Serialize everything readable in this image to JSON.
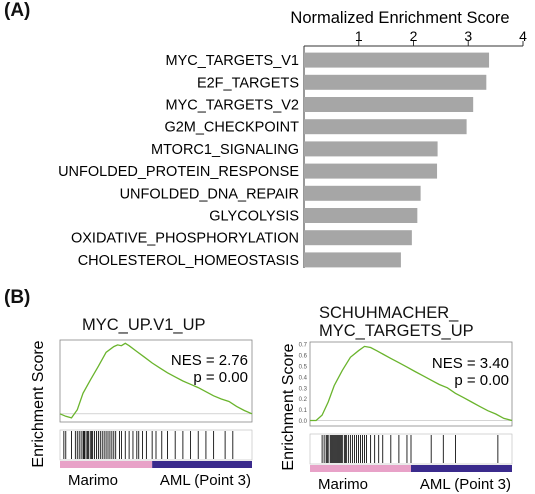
{
  "panel_a": {
    "label": "(A)"
  },
  "panel_b": {
    "label": "(B)",
    "plots": [
      {
        "title": "MYC_UP.V1_UP",
        "nes_text": "NES = 2.76",
        "p_text": "p = 0.00",
        "ylabel": "Enrichment Score",
        "xlabel_left": "Marimo",
        "xlabel_right": "AML (Point 3)"
      },
      {
        "title_line1": "SCHUHMACHER_",
        "title_line2": "MYC_TARGETS_UP",
        "nes_text": "NES = 3.40",
        "p_text": "p = 0.00",
        "ylabel": "Enrichment Score",
        "xlabel_left": "Marimo",
        "xlabel_right": "AML (Point 3)"
      }
    ]
  },
  "chart_data": [
    {
      "type": "bar",
      "orientation": "horizontal",
      "title": "Normalized Enrichment Score",
      "categories": [
        "MYC_TARGETS_V1",
        "E2F_TARGETS",
        "MYC_TARGETS_V2",
        "G2M_CHECKPOINT",
        "MTORC1_SIGNALING",
        "UNFOLDED_PROTEIN_RESPONSE",
        "UNFOLDED_DNA_REPAIR",
        "GLYCOLYSIS",
        "OXIDATIVE_PHOSPHORYLATION",
        "CHOLESTEROL_HOMEOSTASIS"
      ],
      "values": [
        3.38,
        3.33,
        3.09,
        2.97,
        2.44,
        2.43,
        2.13,
        2.07,
        1.97,
        1.77
      ],
      "xlim": [
        0,
        4
      ],
      "xticks": [
        1,
        2,
        3,
        4
      ],
      "bar_color": "#a6a6a6"
    },
    {
      "type": "line",
      "title": "MYC_UP.V1_UP",
      "ylabel": "Enrichment Score",
      "x": [
        0,
        0.03,
        0.06,
        0.09,
        0.12,
        0.16,
        0.2,
        0.24,
        0.28,
        0.3,
        0.32,
        0.34,
        0.36,
        0.4,
        0.44,
        0.48,
        0.52,
        0.56,
        0.6,
        0.64,
        0.68,
        0.72,
        0.76,
        0.8,
        0.84,
        0.88,
        0.92,
        0.96,
        1.0
      ],
      "y": [
        0.0,
        -0.03,
        -0.05,
        0.05,
        0.25,
        0.42,
        0.58,
        0.75,
        0.82,
        0.84,
        0.83,
        0.86,
        0.83,
        0.76,
        0.69,
        0.62,
        0.56,
        0.5,
        0.45,
        0.4,
        0.36,
        0.32,
        0.27,
        0.22,
        0.18,
        0.15,
        0.09,
        0.04,
        0.0
      ],
      "ylim": [
        -0.1,
        0.9
      ],
      "line_color": "#6ab42d",
      "hits": [
        0.02,
        0.03,
        0.06,
        0.08,
        0.09,
        0.1,
        0.11,
        0.12,
        0.125,
        0.13,
        0.14,
        0.145,
        0.15,
        0.16,
        0.165,
        0.17,
        0.18,
        0.19,
        0.2,
        0.21,
        0.22,
        0.23,
        0.24,
        0.25,
        0.26,
        0.27,
        0.28,
        0.29,
        0.31,
        0.32,
        0.34,
        0.36,
        0.38,
        0.4,
        0.41,
        0.43,
        0.45,
        0.48,
        0.5,
        0.53,
        0.56,
        0.6,
        0.64,
        0.68,
        0.72,
        0.76,
        0.8,
        0.86,
        0.9
      ],
      "phenotype_colors": [
        "#e8a2c8",
        "#3a2a8c"
      ],
      "phenotype_split": 0.48
    },
    {
      "type": "line",
      "title": "SCHUHMACHER_ MYC_TARGETS_UP",
      "ylabel": "Enrichment Score",
      "ytick_labels": [
        "0.7",
        "0.6",
        "0.5",
        "0.4",
        "0.3",
        "0.2",
        "0.1",
        "0.0"
      ],
      "x": [
        0,
        0.03,
        0.06,
        0.09,
        0.12,
        0.16,
        0.2,
        0.24,
        0.27,
        0.3,
        0.33,
        0.36,
        0.4,
        0.44,
        0.48,
        0.52,
        0.56,
        0.6,
        0.64,
        0.68,
        0.72,
        0.76,
        0.8,
        0.84,
        0.88,
        0.92,
        0.96,
        1.0
      ],
      "y": [
        0.0,
        0.0,
        0.05,
        0.17,
        0.32,
        0.46,
        0.58,
        0.64,
        0.68,
        0.67,
        0.64,
        0.61,
        0.57,
        0.53,
        0.49,
        0.45,
        0.41,
        0.37,
        0.33,
        0.3,
        0.25,
        0.21,
        0.17,
        0.13,
        0.09,
        0.06,
        0.02,
        0.0
      ],
      "ylim": [
        -0.05,
        0.72
      ],
      "line_color": "#6ab42d",
      "hits": [
        0.06,
        0.07,
        0.08,
        0.085,
        0.09,
        0.1,
        0.105,
        0.11,
        0.115,
        0.12,
        0.125,
        0.13,
        0.135,
        0.14,
        0.145,
        0.15,
        0.155,
        0.16,
        0.17,
        0.175,
        0.18,
        0.19,
        0.2,
        0.21,
        0.22,
        0.23,
        0.24,
        0.25,
        0.26,
        0.27,
        0.28,
        0.3,
        0.32,
        0.34,
        0.36,
        0.4,
        0.44,
        0.48,
        0.5,
        0.6,
        0.66,
        0.72,
        0.93
      ],
      "phenotype_colors": [
        "#e8a2c8",
        "#3a2a8c"
      ],
      "phenotype_split": 0.5
    }
  ]
}
